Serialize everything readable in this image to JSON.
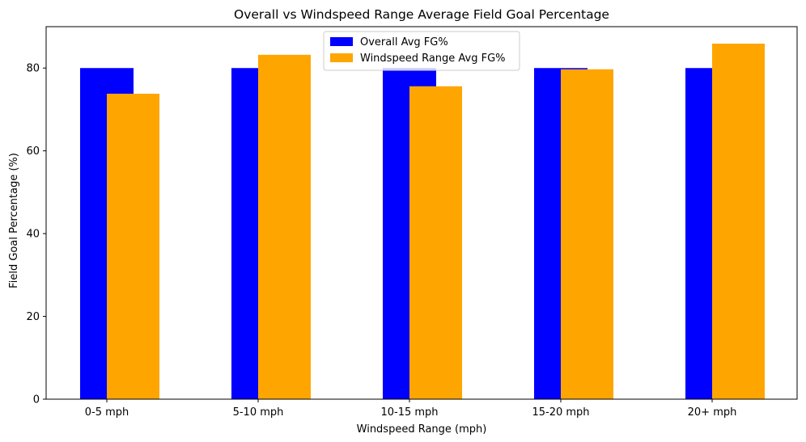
{
  "chart_data": {
    "type": "bar",
    "title": "Overall vs Windspeed Range Average Field Goal Percentage",
    "xlabel": "Windspeed Range (mph)",
    "ylabel": "Field Goal Percentage (%)",
    "categories": [
      "0-5 mph",
      "5-10 mph",
      "10-15 mph",
      "15-20 mph",
      "20+ mph"
    ],
    "series": [
      {
        "name": "Overall Avg FG%",
        "color": "#0000ff",
        "values": [
          80.0,
          80.0,
          80.0,
          80.0,
          80.0
        ]
      },
      {
        "name": "Windspeed Range Avg FG%",
        "color": "#ffa500",
        "values": [
          73.8,
          83.2,
          75.6,
          79.7,
          85.9
        ]
      }
    ],
    "ylim": [
      0,
      90
    ],
    "yticks": [
      0,
      20,
      40,
      60,
      80
    ],
    "grid": false,
    "legend_position": "top-center"
  }
}
